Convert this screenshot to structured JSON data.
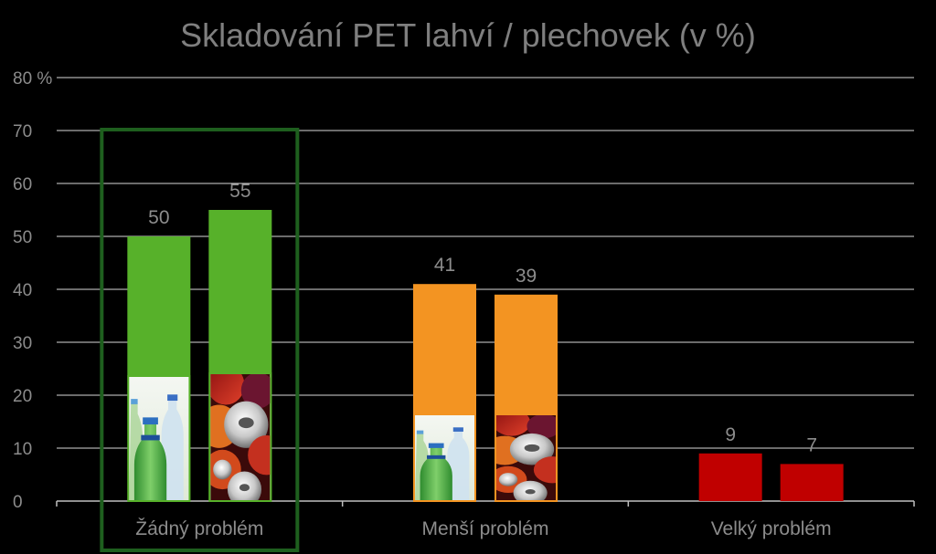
{
  "chart_data": {
    "type": "bar",
    "title": "Skladování PET lahví / plechovek (v %)",
    "categories": [
      "Žádný problém",
      "Menší problém",
      "Velký problém"
    ],
    "series": [
      {
        "values": [
          50,
          41,
          9
        ],
        "icon": "pet-bottles-photo"
      },
      {
        "values": [
          55,
          39,
          7
        ],
        "icon": "cans-photo"
      }
    ],
    "bar_colors": [
      "#57b12a",
      "#f39422",
      "#c00000"
    ],
    "highlight_box_color": "#1e5f1e",
    "highlighted_category": "Žádný problém",
    "y_ticks": [
      "0",
      "10",
      "20",
      "30",
      "40",
      "50",
      "60",
      "70",
      "80 %"
    ],
    "ylim": [
      0,
      80
    ],
    "grid": true
  }
}
